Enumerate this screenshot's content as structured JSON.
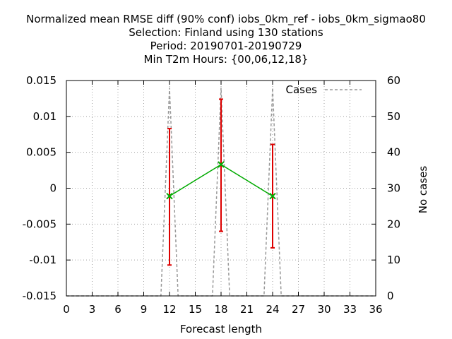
{
  "chart_data": {
    "type": "line",
    "title_lines": [
      "Normalized mean RMSE diff (90% conf) iobs_0km_ref - iobs_0km_sigmao80",
      "Selection: Finland using   130 stations",
      "Period: 20190701-20190729",
      "Min T2m   Hours: {00,06,12,18}"
    ],
    "xlabel": "Forecast length",
    "ylabel_right": "No cases",
    "xlim": [
      0,
      36
    ],
    "ylim": [
      -0.015,
      0.015
    ],
    "y2lim": [
      0,
      60
    ],
    "x_ticks": [
      0,
      3,
      6,
      9,
      12,
      15,
      18,
      21,
      24,
      27,
      30,
      33,
      36
    ],
    "x_tick_labels": [
      "0",
      "3",
      "6",
      "9",
      "12",
      "15",
      "18",
      "21",
      "24",
      "27",
      "30",
      "33",
      "36"
    ],
    "y_ticks": [
      0.015,
      0.01,
      0.005,
      0,
      -0.005,
      -0.01,
      -0.015
    ],
    "y_tick_labels": [
      "0.015",
      "0.01",
      "0.005",
      "0",
      "-0.005",
      "-0.01",
      "-0.015"
    ],
    "y2_ticks": [
      60,
      50,
      40,
      30,
      20,
      10,
      0
    ],
    "y2_tick_labels": [
      "60",
      "50",
      "40",
      "30",
      "20",
      "10",
      "0"
    ],
    "grid": true,
    "legend": {
      "position": "top-right",
      "entries": [
        "Cases"
      ]
    },
    "series": [
      {
        "role": "mean_diff",
        "color": "#00aa00",
        "x": [
          12,
          18,
          24
        ],
        "y": [
          -0.0011,
          0.0033,
          -0.0011
        ]
      }
    ],
    "error_bars": {
      "color": "#dd0000",
      "x": [
        12,
        18,
        24
      ],
      "low": [
        -0.0107,
        -0.006,
        -0.0083
      ],
      "high": [
        0.0083,
        0.0124,
        0.0061
      ]
    },
    "cases": {
      "name": "Cases",
      "color": "#999999",
      "x": [
        0,
        11,
        12,
        13,
        17,
        18,
        19,
        23,
        24,
        25,
        36
      ],
      "y": [
        0,
        0,
        58,
        0,
        0,
        58,
        0,
        0,
        58,
        0,
        0
      ]
    }
  }
}
